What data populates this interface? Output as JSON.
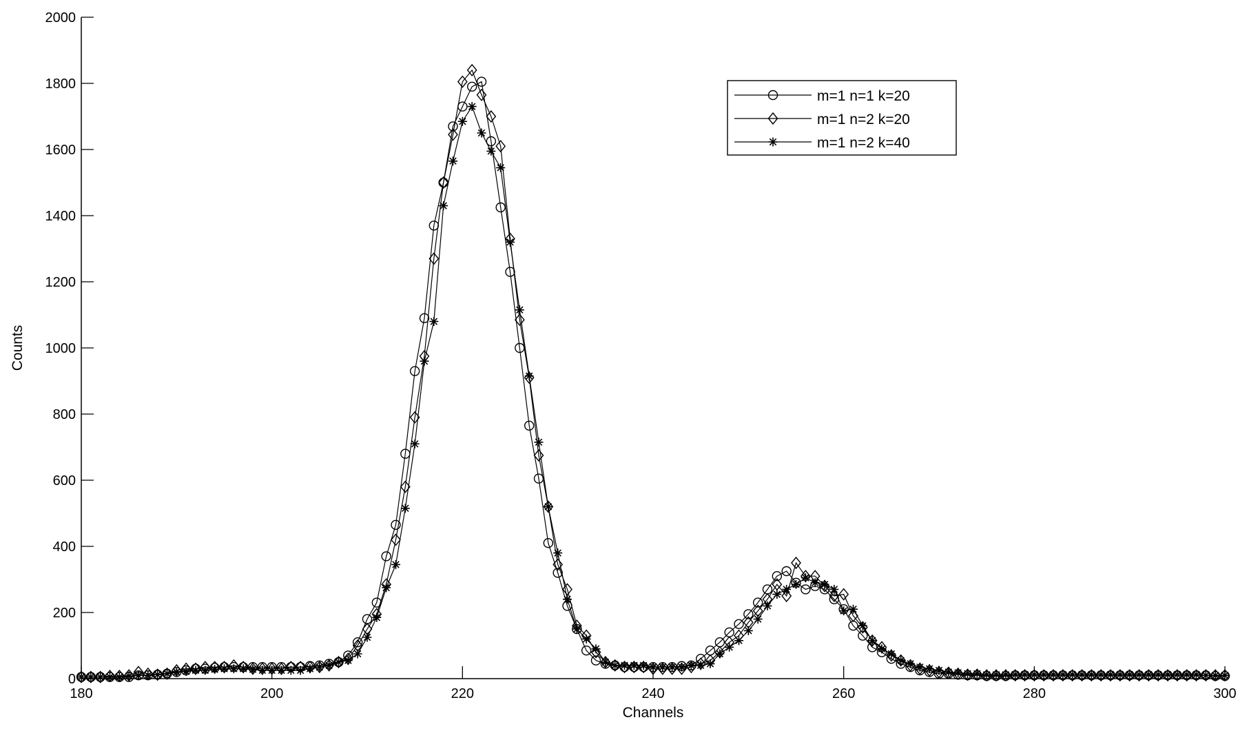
{
  "chart_data": {
    "type": "line",
    "title": "",
    "xlabel": "Channels",
    "ylabel": "Counts",
    "xlim": [
      180,
      300
    ],
    "ylim": [
      0,
      2000
    ],
    "xticks": [
      180,
      200,
      220,
      240,
      260,
      280,
      300
    ],
    "yticks": [
      0,
      200,
      400,
      600,
      800,
      1000,
      1200,
      1400,
      1600,
      1800,
      2000
    ],
    "grid": false,
    "legend_position": "top-right",
    "line_color": "#000000",
    "series": [
      {
        "name": "m=1 n=1 k=20",
        "marker": "circle",
        "x": [
          180,
          181,
          182,
          183,
          184,
          185,
          186,
          187,
          188,
          189,
          190,
          191,
          192,
          193,
          194,
          195,
          196,
          197,
          198,
          199,
          200,
          201,
          202,
          203,
          204,
          205,
          206,
          207,
          208,
          209,
          210,
          211,
          212,
          213,
          214,
          215,
          216,
          217,
          218,
          219,
          220,
          221,
          222,
          223,
          224,
          225,
          226,
          227,
          228,
          229,
          230,
          231,
          232,
          233,
          234,
          235,
          236,
          237,
          238,
          239,
          240,
          241,
          242,
          243,
          244,
          245,
          246,
          247,
          248,
          249,
          250,
          251,
          252,
          253,
          254,
          255,
          256,
          257,
          258,
          259,
          260,
          261,
          262,
          263,
          264,
          265,
          266,
          267,
          268,
          269,
          270,
          271,
          272,
          273,
          274,
          275,
          276,
          277,
          278,
          279,
          280,
          281,
          282,
          283,
          284,
          285,
          286,
          287,
          288,
          289,
          290,
          291,
          292,
          293,
          294,
          295,
          296,
          297,
          298,
          299,
          300
        ],
        "y": [
          5,
          5,
          5,
          5,
          5,
          5,
          10,
          10,
          12,
          15,
          20,
          25,
          30,
          30,
          33,
          35,
          35,
          35,
          35,
          35,
          35,
          35,
          35,
          35,
          38,
          40,
          45,
          50,
          70,
          110,
          180,
          230,
          370,
          465,
          680,
          930,
          1090,
          1370,
          1500,
          1670,
          1730,
          1790,
          1805,
          1625,
          1425,
          1230,
          1000,
          765,
          605,
          410,
          320,
          220,
          150,
          85,
          55,
          45,
          40,
          35,
          35,
          35,
          35,
          35,
          35,
          38,
          40,
          60,
          85,
          110,
          140,
          165,
          195,
          230,
          270,
          310,
          325,
          290,
          270,
          280,
          270,
          240,
          210,
          160,
          130,
          95,
          80,
          60,
          45,
          35,
          25,
          20,
          15,
          15,
          12,
          10,
          10,
          8,
          8,
          8,
          10,
          10,
          10,
          10,
          10,
          10,
          10,
          10,
          10,
          10,
          10,
          10,
          10,
          10,
          10,
          10,
          10,
          10,
          10,
          10,
          10,
          8,
          8
        ]
      },
      {
        "name": "m=1 n=2 k=20",
        "marker": "diamond",
        "x": [
          180,
          181,
          182,
          183,
          184,
          185,
          186,
          187,
          188,
          189,
          190,
          191,
          192,
          193,
          194,
          195,
          196,
          197,
          198,
          199,
          200,
          201,
          202,
          203,
          204,
          205,
          206,
          207,
          208,
          209,
          210,
          211,
          212,
          213,
          214,
          215,
          216,
          217,
          218,
          219,
          220,
          221,
          222,
          223,
          224,
          225,
          226,
          227,
          228,
          229,
          230,
          231,
          232,
          233,
          234,
          235,
          236,
          237,
          238,
          239,
          240,
          241,
          242,
          243,
          244,
          245,
          246,
          247,
          248,
          249,
          250,
          251,
          252,
          253,
          254,
          255,
          256,
          257,
          258,
          259,
          260,
          261,
          262,
          263,
          264,
          265,
          266,
          267,
          268,
          269,
          270,
          271,
          272,
          273,
          274,
          275,
          276,
          277,
          278,
          279,
          280,
          281,
          282,
          283,
          284,
          285,
          286,
          287,
          288,
          289,
          290,
          291,
          292,
          293,
          294,
          295,
          296,
          297,
          298,
          299,
          300
        ],
        "y": [
          5,
          5,
          5,
          8,
          8,
          10,
          20,
          15,
          12,
          15,
          25,
          30,
          30,
          35,
          35,
          35,
          40,
          35,
          30,
          30,
          30,
          30,
          35,
          35,
          35,
          35,
          40,
          50,
          60,
          100,
          150,
          195,
          285,
          420,
          580,
          790,
          975,
          1270,
          1500,
          1645,
          1805,
          1840,
          1765,
          1700,
          1610,
          1330,
          1085,
          910,
          675,
          520,
          345,
          270,
          160,
          130,
          80,
          50,
          40,
          35,
          35,
          35,
          30,
          30,
          30,
          30,
          35,
          45,
          55,
          80,
          110,
          130,
          170,
          205,
          240,
          285,
          250,
          350,
          310,
          310,
          280,
          250,
          255,
          190,
          155,
          115,
          95,
          70,
          55,
          40,
          30,
          25,
          20,
          18,
          15,
          12,
          12,
          10,
          10,
          10,
          10,
          10,
          10,
          10,
          10,
          10,
          10,
          10,
          10,
          10,
          10,
          10,
          10,
          10,
          10,
          10,
          10,
          10,
          10,
          10,
          10,
          10,
          10
        ]
      },
      {
        "name": "m=1 n=2 k=40",
        "marker": "asterisk",
        "x": [
          180,
          181,
          182,
          183,
          184,
          185,
          186,
          187,
          188,
          189,
          190,
          191,
          192,
          193,
          194,
          195,
          196,
          197,
          198,
          199,
          200,
          201,
          202,
          203,
          204,
          205,
          206,
          207,
          208,
          209,
          210,
          211,
          212,
          213,
          214,
          215,
          216,
          217,
          218,
          219,
          220,
          221,
          222,
          223,
          224,
          225,
          226,
          227,
          228,
          229,
          230,
          231,
          232,
          233,
          234,
          235,
          236,
          237,
          238,
          239,
          240,
          241,
          242,
          243,
          244,
          245,
          246,
          247,
          248,
          249,
          250,
          251,
          252,
          253,
          254,
          255,
          256,
          257,
          258,
          259,
          260,
          261,
          262,
          263,
          264,
          265,
          266,
          267,
          268,
          269,
          270,
          271,
          272,
          273,
          274,
          275,
          276,
          277,
          278,
          279,
          280,
          281,
          282,
          283,
          284,
          285,
          286,
          287,
          288,
          289,
          290,
          291,
          292,
          293,
          294,
          295,
          296,
          297,
          298,
          299,
          300
        ],
        "y": [
          5,
          5,
          5,
          5,
          5,
          8,
          10,
          10,
          12,
          15,
          20,
          22,
          25,
          25,
          28,
          30,
          30,
          30,
          28,
          25,
          25,
          25,
          25,
          25,
          30,
          35,
          40,
          50,
          55,
          75,
          125,
          185,
          275,
          345,
          515,
          710,
          960,
          1080,
          1430,
          1565,
          1685,
          1730,
          1650,
          1595,
          1545,
          1320,
          1115,
          915,
          715,
          520,
          380,
          240,
          150,
          120,
          90,
          50,
          40,
          40,
          40,
          40,
          35,
          35,
          35,
          35,
          40,
          40,
          45,
          75,
          95,
          115,
          145,
          180,
          220,
          255,
          270,
          285,
          305,
          290,
          285,
          270,
          205,
          210,
          160,
          115,
          90,
          75,
          55,
          45,
          35,
          30,
          25,
          20,
          18,
          15,
          15,
          12,
          12,
          12,
          12,
          12,
          12,
          12,
          12,
          12,
          12,
          12,
          12,
          12,
          12,
          12,
          12,
          12,
          12,
          12,
          12,
          12,
          12,
          12,
          10,
          10,
          10
        ]
      }
    ]
  }
}
